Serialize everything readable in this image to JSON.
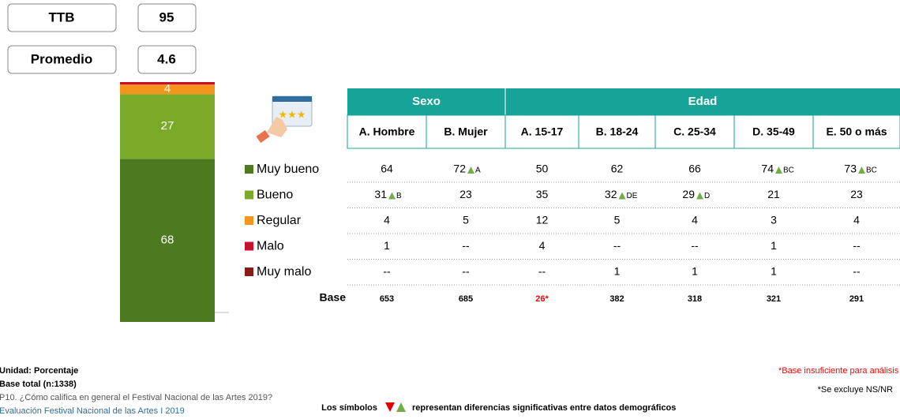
{
  "summary": {
    "ttb_label": "TTB",
    "ttb_value": "95",
    "avg_label": "Promedio",
    "avg_value": "4.6"
  },
  "chart_data": {
    "type": "stacked_bar",
    "ylim": [
      0,
      100
    ],
    "series": [
      {
        "name": "Muy bueno",
        "color": "#4e7a1f",
        "values": [
          68
        ]
      },
      {
        "name": "Bueno",
        "color": "#7aab28",
        "values": [
          27
        ]
      },
      {
        "name": "Regular",
        "color": "#f7941d",
        "values": [
          4
        ]
      },
      {
        "name": "Malo",
        "color": "#c8102e",
        "values": [
          1
        ]
      }
    ]
  },
  "table": {
    "groups": [
      {
        "label": "Sexo",
        "span": 2
      },
      {
        "label": "Edad",
        "span": 5
      }
    ],
    "columns": [
      "A. Hombre",
      "B. Mujer",
      "A. 15-17",
      "B. 18-24",
      "C. 25-34",
      "D. 35-49",
      "E. 50 o más"
    ],
    "rows": [
      {
        "label": "Muy bueno",
        "color": "#4e7a1f",
        "cells": [
          {
            "v": "64"
          },
          {
            "v": "72",
            "sig": "A"
          },
          {
            "v": "50"
          },
          {
            "v": "62"
          },
          {
            "v": "66"
          },
          {
            "v": "74",
            "sig": "BC"
          },
          {
            "v": "73",
            "sig": "BC"
          }
        ]
      },
      {
        "label": "Bueno",
        "color": "#7aab28",
        "cells": [
          {
            "v": "31",
            "sig": "B"
          },
          {
            "v": "23"
          },
          {
            "v": "35"
          },
          {
            "v": "32",
            "sig": "DE"
          },
          {
            "v": "29",
            "sig": "D"
          },
          {
            "v": "21"
          },
          {
            "v": "23"
          }
        ]
      },
      {
        "label": "Regular",
        "color": "#f7941d",
        "cells": [
          {
            "v": "4"
          },
          {
            "v": "5"
          },
          {
            "v": "12"
          },
          {
            "v": "5"
          },
          {
            "v": "4"
          },
          {
            "v": "3"
          },
          {
            "v": "4"
          }
        ]
      },
      {
        "label": "Malo",
        "color": "#c8102e",
        "cells": [
          {
            "v": "1"
          },
          {
            "v": "--"
          },
          {
            "v": "4"
          },
          {
            "v": "--"
          },
          {
            "v": "--"
          },
          {
            "v": "1"
          },
          {
            "v": "--"
          }
        ]
      },
      {
        "label": "Muy malo",
        "color": "#8b1a1a",
        "cells": [
          {
            "v": "--"
          },
          {
            "v": "--"
          },
          {
            "v": "--"
          },
          {
            "v": "1"
          },
          {
            "v": "1"
          },
          {
            "v": "1"
          },
          {
            "v": "--"
          }
        ]
      }
    ],
    "base_label": "Base",
    "base": [
      {
        "text": "653"
      },
      {
        "text": "685"
      },
      {
        "text": "26*",
        "color": "#ff0000"
      },
      {
        "text": "382"
      },
      {
        "text": "318"
      },
      {
        "text": "321"
      },
      {
        "text": "291"
      }
    ]
  },
  "footer": {
    "unit": "Unidad: Porcentaje",
    "base_total": "Base total (n:1338)",
    "question": "P10. ¿Cómo califica en general el Festival Nacional de las Artes 2019?",
    "source": "Evaluación Festival Nacional de las Artes I 2019",
    "insufficient": "*Base insuficiente para análisis",
    "excluded": "*Se excluye NS/NR",
    "symbols_pre": "Los símbolos",
    "symbols_post": "representan diferencias significativas entre datos demográficos"
  }
}
